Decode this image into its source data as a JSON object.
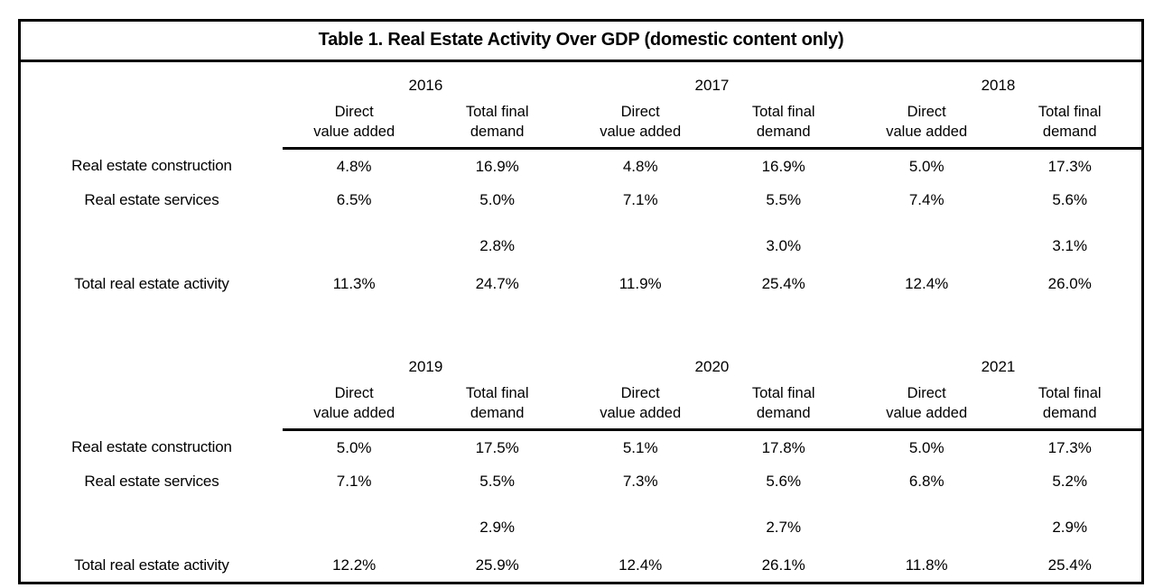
{
  "title": "Table 1. Real Estate Activity Over GDP (domestic content only)",
  "column_headers": {
    "direct": "Direct\nvalue added",
    "total": "Total final\ndemand"
  },
  "sections": [
    {
      "years": [
        "2016",
        "2017",
        "2018"
      ],
      "rows": [
        {
          "label": "Real estate construction",
          "values": [
            "4.8%",
            "16.9%",
            "4.8%",
            "16.9%",
            "5.0%",
            "17.3%"
          ]
        },
        {
          "label": "Real estate services",
          "values": [
            "6.5%",
            "5.0%",
            "7.1%",
            "5.5%",
            "7.4%",
            "5.6%"
          ]
        },
        {
          "label": "",
          "values": [
            "",
            "2.8%",
            "",
            "3.0%",
            "",
            "3.1%"
          ]
        },
        {
          "label": "Total real estate activity",
          "values": [
            "11.3%",
            "24.7%",
            "11.9%",
            "25.4%",
            "12.4%",
            "26.0%"
          ]
        }
      ]
    },
    {
      "years": [
        "2019",
        "2020",
        "2021"
      ],
      "rows": [
        {
          "label": "Real estate construction",
          "values": [
            "5.0%",
            "17.5%",
            "5.1%",
            "17.8%",
            "5.0%",
            "17.3%"
          ]
        },
        {
          "label": "Real estate services",
          "values": [
            "7.1%",
            "5.5%",
            "7.3%",
            "5.6%",
            "6.8%",
            "5.2%"
          ]
        },
        {
          "label": "",
          "values": [
            "",
            "2.9%",
            "",
            "2.7%",
            "",
            "2.9%"
          ]
        },
        {
          "label": "Total real estate activity",
          "values": [
            "12.2%",
            "25.9%",
            "12.4%",
            "26.1%",
            "11.8%",
            "25.4%"
          ]
        }
      ]
    }
  ]
}
